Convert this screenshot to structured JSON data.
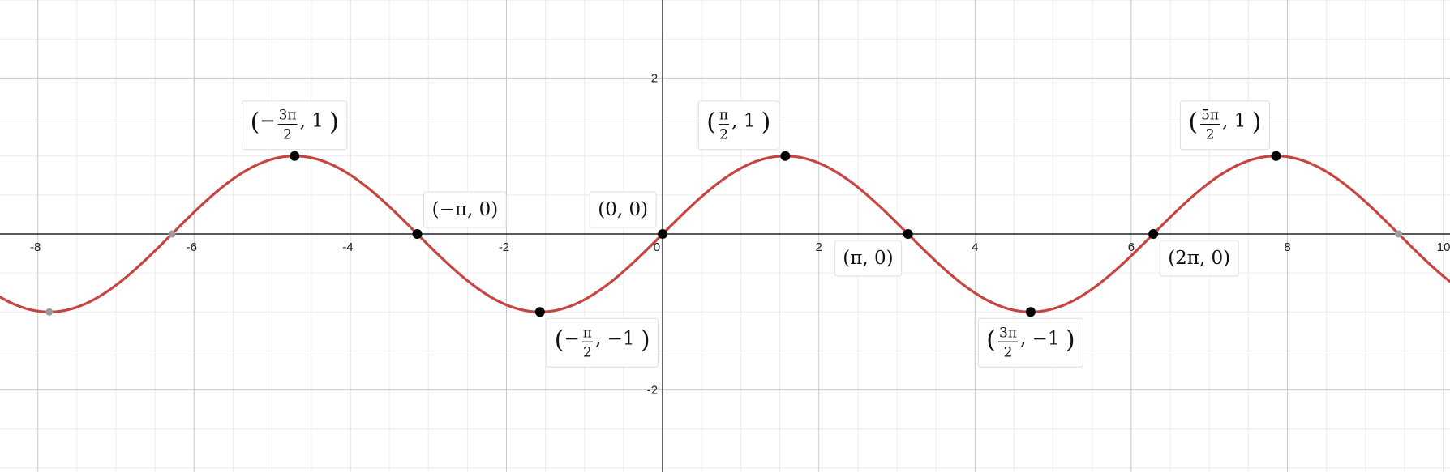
{
  "chart_data": {
    "type": "line",
    "title": "",
    "xlabel": "",
    "ylabel": "",
    "xlim": [
      -8.5,
      10.1
    ],
    "ylim": [
      -3.0,
      3.0
    ],
    "grid": true,
    "x_ticks": [
      {
        "value": -8,
        "label": "-8"
      },
      {
        "value": -6,
        "label": "-6"
      },
      {
        "value": -4,
        "label": "-4"
      },
      {
        "value": -2,
        "label": "-2"
      },
      {
        "value": 0,
        "label": "0"
      },
      {
        "value": 2,
        "label": "2"
      },
      {
        "value": 4,
        "label": "4"
      },
      {
        "value": 6,
        "label": "6"
      },
      {
        "value": 8,
        "label": "8"
      },
      {
        "value": 10,
        "label": "10"
      }
    ],
    "y_ticks": [
      {
        "value": 2,
        "label": "2"
      },
      {
        "value": -2,
        "label": "-2"
      }
    ],
    "series": [
      {
        "function": "sin(x)",
        "color": "#c74440"
      }
    ],
    "key_points": [
      {
        "x": -4.712389,
        "y": 1,
        "label": {
          "sign": "−",
          "num": "3π",
          "den": "2",
          "y": "1"
        },
        "placement": "above"
      },
      {
        "x": -3.141593,
        "y": 0,
        "label": {
          "text": "(−π, 0)"
        },
        "placement": "above-right"
      },
      {
        "x": -1.570796,
        "y": -1,
        "label": {
          "sign": "−",
          "num": "π",
          "den": "2",
          "y": "−1"
        },
        "placement": "below-right"
      },
      {
        "x": 0,
        "y": 0,
        "label": {
          "text": "(0, 0)"
        },
        "placement": "above-left"
      },
      {
        "x": 1.570796,
        "y": 1,
        "label": {
          "sign": "",
          "num": "π",
          "den": "2",
          "y": "1"
        },
        "placement": "above-left"
      },
      {
        "x": 3.141593,
        "y": 0,
        "label": {
          "text": "(π, 0)"
        },
        "placement": "below-left"
      },
      {
        "x": 4.712389,
        "y": -1,
        "label": {
          "sign": "",
          "num": "3π",
          "den": "2",
          "y": "−1"
        },
        "placement": "below"
      },
      {
        "x": 6.283185,
        "y": 0,
        "label": {
          "text": "(2π, 0)"
        },
        "placement": "below-right"
      },
      {
        "x": 7.853982,
        "y": 1,
        "label": {
          "sign": "",
          "num": "5π",
          "den": "2",
          "y": "1"
        },
        "placement": "above-left"
      }
    ],
    "faded_points": [
      {
        "x": -7.853982,
        "y": -1
      },
      {
        "x": -6.283185,
        "y": 0
      },
      {
        "x": 9.424778,
        "y": 0
      }
    ],
    "colors": {
      "curve": "#c74440",
      "point": "#000000",
      "faded_point": "#9a9a9a",
      "axis": "#222222",
      "major_grid": "#c9c9c9",
      "minor_grid": "#ececec",
      "label_border": "#dddddd"
    }
  }
}
